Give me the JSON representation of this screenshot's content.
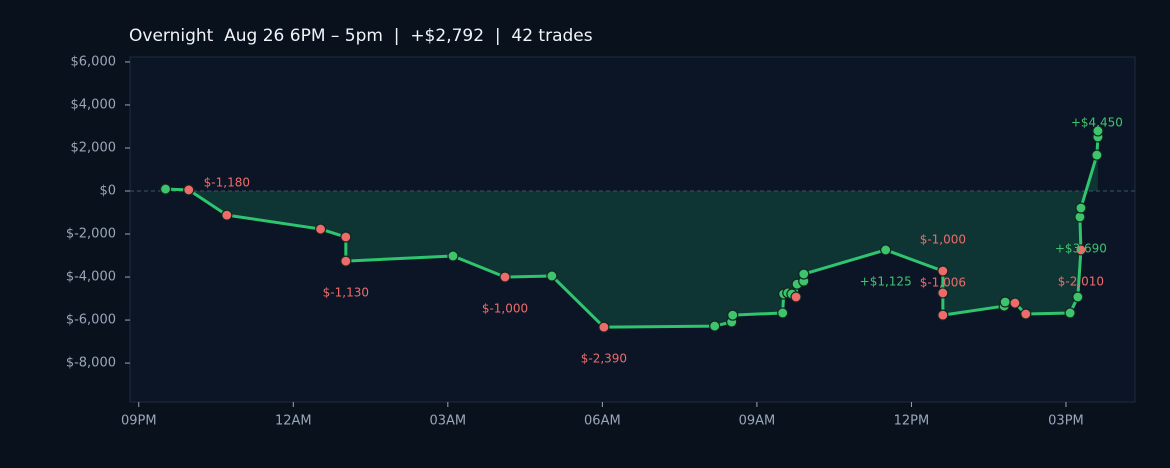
{
  "chart_data": {
    "type": "line",
    "title": "Overnight  Aug 26 6PM – 5pm  |  +$2,792  |  42 trades",
    "x": [
      21.52,
      21.97,
      22.71,
      24.53,
      25.02,
      25.02,
      27.1,
      28.11,
      29.02,
      30.03,
      32.18,
      32.51,
      32.53,
      33.5,
      33.52,
      33.6,
      33.68,
      33.76,
      33.78,
      33.91,
      33.91,
      35.5,
      36.61,
      36.61,
      36.61,
      37.8,
      37.82,
      38.01,
      38.22,
      39.08,
      39.23,
      39.29,
      39.27,
      39.29,
      39.6,
      39.62,
      39.62
    ],
    "values": [
      90,
      50,
      -1120,
      -1770,
      -2140,
      -3260,
      -3020,
      -4000,
      -3950,
      -6330,
      -6280,
      -6090,
      -5770,
      -5670,
      -4790,
      -4740,
      -4790,
      -4930,
      -4330,
      -4190,
      -3860,
      -2740,
      -3720,
      -4740,
      -5770,
      -5350,
      -5160,
      -5210,
      -5720,
      -5670,
      -4930,
      -2740,
      -1210,
      -790,
      1670,
      2510,
      2792
    ],
    "marker_colors": [
      "#3ec46d",
      "#ee6b6b",
      "#ee6b6b",
      "#ee6b6b",
      "#ee6b6b",
      "#ee6b6b",
      "#3ec46d",
      "#ee6b6b",
      "#3ec46d",
      "#ee6b6b",
      "#3ec46d",
      "#3ec46d",
      "#3ec46d",
      "#3ec46d",
      "#3ec46d",
      "#3ec46d",
      "#3ec46d",
      "#ee6b6b",
      "#3ec46d",
      "#3ec46d",
      "#3ec46d",
      "#3ec46d",
      "#ee6b6b",
      "#ee6b6b",
      "#ee6b6b",
      "#3ec46d",
      "#3ec46d",
      "#ee6b6b",
      "#ee6b6b",
      "#3ec46d",
      "#3ec46d",
      "#ee6b6b",
      "#3ec46d",
      "#3ec46d",
      "#3ec46d",
      "#3ec46d",
      "#3ec46d"
    ],
    "color": "#2fc46e",
    "area_color": "#0e3434",
    "xlim": [
      20.83,
      40.34
    ],
    "xticks": [
      {
        "value": 21,
        "label": "09PM"
      },
      {
        "value": 24,
        "label": "12AM"
      },
      {
        "value": 27,
        "label": "03AM"
      },
      {
        "value": 30,
        "label": "06AM"
      },
      {
        "value": 33,
        "label": "09AM"
      },
      {
        "value": 36,
        "label": "12PM"
      },
      {
        "value": 39,
        "label": "03PM"
      }
    ],
    "ylim": [
      -9810,
      6230
    ],
    "yticks": [
      {
        "value": 6000,
        "label": "$6,000"
      },
      {
        "value": 4000,
        "label": "$4,000"
      },
      {
        "value": 2000,
        "label": "$2,000"
      },
      {
        "value": 0,
        "label": "$0"
      },
      {
        "value": -2000,
        "label": "$-2,000"
      },
      {
        "value": -4000,
        "label": "$-4,000"
      },
      {
        "value": -6000,
        "label": "$-6,000"
      },
      {
        "value": -8000,
        "label": "$-8,000"
      }
    ],
    "annotations": [
      {
        "text": "$-1,180",
        "x": 22.71,
        "y": 372,
        "color": "#ee6b6b"
      },
      {
        "text": "$-1,130",
        "x": 25.02,
        "y": -4744,
        "color": "#ee6b6b"
      },
      {
        "text": "$-1,000",
        "x": 28.11,
        "y": -5488,
        "color": "#ee6b6b"
      },
      {
        "text": "$-2,390",
        "x": 30.03,
        "y": -7814,
        "color": "#ee6b6b"
      },
      {
        "text": "+$1,125",
        "x": 35.5,
        "y": -4233,
        "color": "#3ec46d"
      },
      {
        "text": "$-1,000",
        "x": 36.61,
        "y": -2279,
        "color": "#ee6b6b"
      },
      {
        "text": "$-1,006",
        "x": 36.61,
        "y": -4279,
        "color": "#ee6b6b"
      },
      {
        "text": "+$3,690",
        "x": 39.29,
        "y": -2698,
        "color": "#3ec46d"
      },
      {
        "text": "$-2,010",
        "x": 39.29,
        "y": -4233,
        "color": "#ee6b6b"
      },
      {
        "text": "+$4,450",
        "x": 39.6,
        "y": 3163,
        "color": "#3ec46d"
      }
    ]
  }
}
